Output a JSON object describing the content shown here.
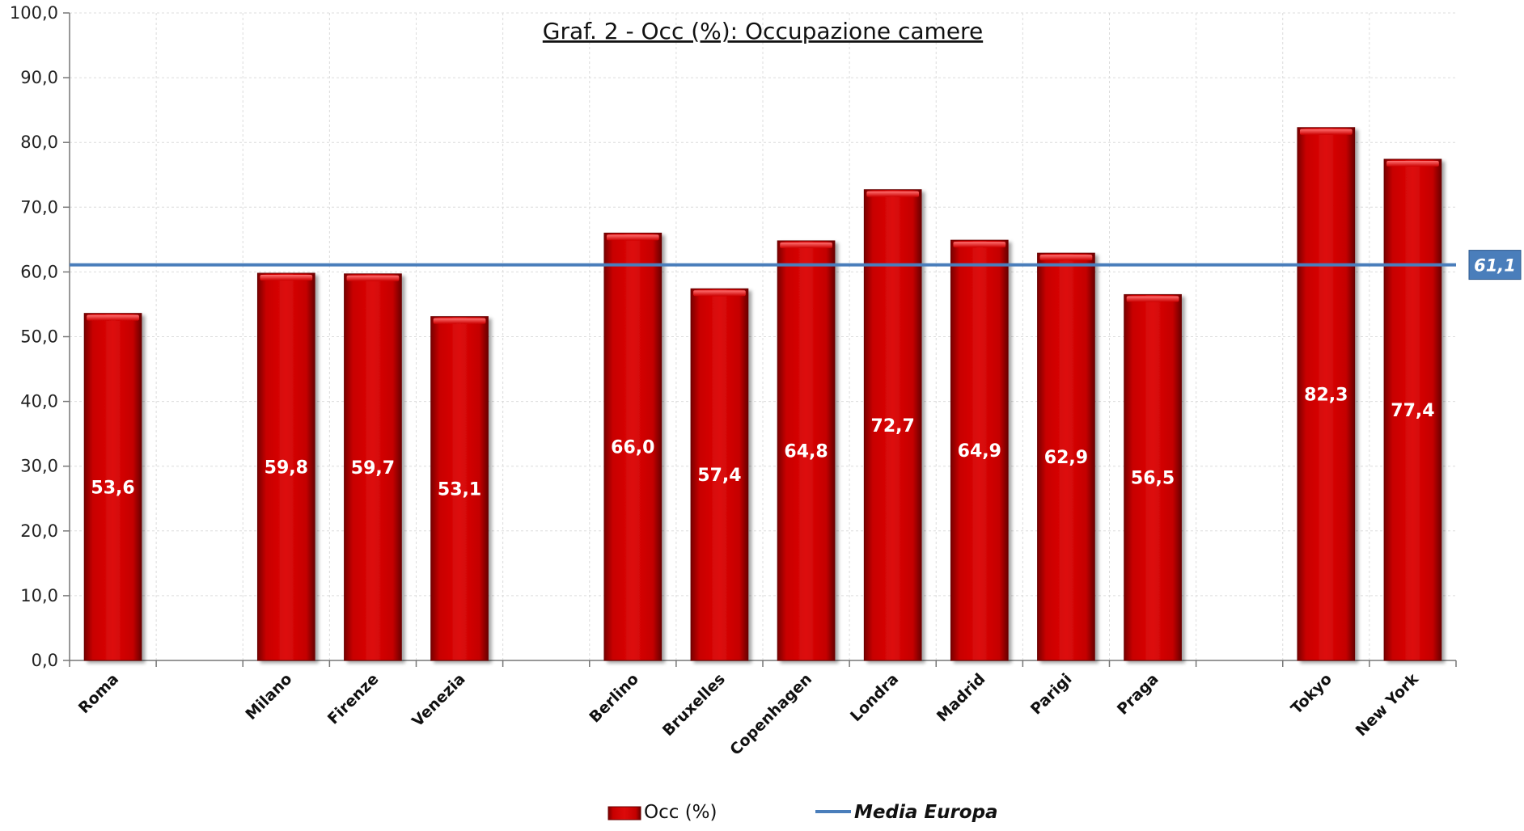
{
  "chart_data": {
    "type": "bar",
    "title": "Graf. 2 - Occ (%): Occupazione camere",
    "categories": [
      "Roma",
      "",
      "Milano",
      "Firenze",
      "Venezia",
      "",
      "Berlino",
      "Bruxelles",
      "Copenhagen",
      "Londra",
      "Madrid",
      "Parigi",
      "Praga",
      "",
      "Tokyo",
      "New York"
    ],
    "series": [
      {
        "name": "Occ (%)",
        "color": "#cc0000",
        "values": [
          53.6,
          null,
          59.8,
          59.7,
          53.1,
          null,
          66.0,
          57.4,
          64.8,
          72.7,
          64.9,
          62.9,
          56.5,
          null,
          82.3,
          77.4
        ],
        "labels": [
          "53,6",
          "",
          "59,8",
          "59,7",
          "53,1",
          "",
          "66,0",
          "57,4",
          "64,8",
          "72,7",
          "64,9",
          "62,9",
          "56,5",
          "",
          "82,3",
          "77,4"
        ]
      }
    ],
    "reference_line": {
      "name": "Media Europa",
      "value": 61.1,
      "label": "61,1",
      "color": "#4a7ebb"
    },
    "ylim": [
      0,
      100
    ],
    "yticks": [
      0,
      10,
      20,
      30,
      40,
      50,
      60,
      70,
      80,
      90,
      100
    ],
    "ytick_labels": [
      "0,0",
      "10,0",
      "20,0",
      "30,0",
      "40,0",
      "50,0",
      "60,0",
      "70,0",
      "80,0",
      "90,0",
      "100,0"
    ],
    "xlabel": "",
    "ylabel": "",
    "grid": true,
    "legend": {
      "position": "bottom",
      "entries": [
        "Occ (%)",
        "Media Europa"
      ]
    }
  }
}
